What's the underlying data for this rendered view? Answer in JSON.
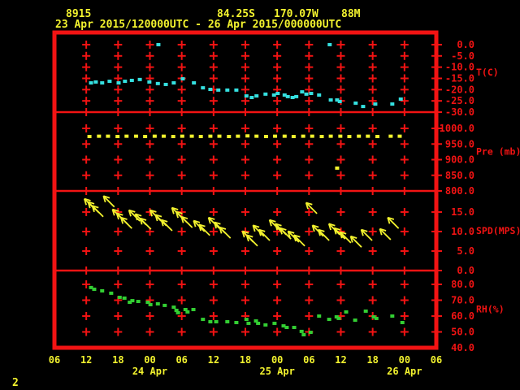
{
  "colors": {
    "background": "#000000",
    "red": "#f21313",
    "yellow": "#f2f22e",
    "cyan": "#35e0e0",
    "green": "#33cf33"
  },
  "header": {
    "station_id": "8915",
    "latitude": "84.25S",
    "longitude": "170.07W",
    "elevation": "88M",
    "time_range": "23 Apr 2015/120000UTC - 26 Apr 2015/000000UTC"
  },
  "footer": {
    "figure_number": "2"
  },
  "x_axis": {
    "hours_span": 72,
    "tick_hours": [
      0,
      6,
      12,
      18,
      24,
      30,
      36,
      42,
      48,
      54,
      60,
      66,
      72
    ],
    "tick_labels": [
      "06",
      "12",
      "18",
      "00",
      "06",
      "12",
      "18",
      "00",
      "06",
      "12",
      "18",
      "00",
      "06"
    ],
    "date_labels": [
      {
        "label": "24 Apr",
        "hour": 18
      },
      {
        "label": "25 Apr",
        "hour": 42
      },
      {
        "label": "26 Apr",
        "hour": 66
      }
    ]
  },
  "chart_data": [
    {
      "panel": "temperature",
      "type": "scatter",
      "unit_label": "T(C)",
      "color": "cyan",
      "yticks": [
        0,
        -5,
        -10,
        -15,
        -20,
        -25,
        -30
      ],
      "ytick_labels": [
        "0.0",
        "-5.0",
        "-10.0",
        "-15.0",
        "-20.0",
        "-25.0",
        "-30.0"
      ],
      "value_range": [
        -30,
        5.4
      ],
      "points": [
        [
          6.9,
          -17.0
        ],
        [
          7.8,
          -16.6
        ],
        [
          9.0,
          -17.0
        ],
        [
          10.4,
          -16.3
        ],
        [
          12.1,
          -17.0
        ],
        [
          13.3,
          -16.3
        ],
        [
          14.6,
          -15.9
        ],
        [
          16.1,
          -15.5
        ],
        [
          17.9,
          -16.6
        ],
        [
          19.5,
          -17.3
        ],
        [
          19.6,
          0.0
        ],
        [
          21.0,
          -17.7
        ],
        [
          22.5,
          -17.0
        ],
        [
          24.2,
          -15.2
        ],
        [
          26.3,
          -17.0
        ],
        [
          28.0,
          -19.2
        ],
        [
          29.4,
          -19.9
        ],
        [
          30.9,
          -20.2
        ],
        [
          32.6,
          -20.2
        ],
        [
          34.3,
          -20.2
        ],
        [
          36.2,
          -22.8
        ],
        [
          37.2,
          -23.5
        ],
        [
          38.1,
          -22.8
        ],
        [
          39.8,
          -22.0
        ],
        [
          41.4,
          -22.4
        ],
        [
          42.1,
          -21.7
        ],
        [
          43.4,
          -22.4
        ],
        [
          44.0,
          -23.1
        ],
        [
          44.9,
          -23.5
        ],
        [
          45.6,
          -23.1
        ],
        [
          46.7,
          -21.0
        ],
        [
          47.5,
          -22.0
        ],
        [
          48.4,
          -21.7
        ],
        [
          49.9,
          -22.4
        ],
        [
          51.9,
          0.0
        ],
        [
          52.1,
          -24.6
        ],
        [
          53.3,
          -24.6
        ],
        [
          53.8,
          -25.3
        ],
        [
          56.8,
          -26.0
        ],
        [
          58.2,
          -27.5
        ],
        [
          60.5,
          -26.4
        ],
        [
          63.7,
          -26.4
        ],
        [
          65.3,
          -24.2
        ]
      ]
    },
    {
      "panel": "pressure",
      "type": "scatter",
      "unit_label": "Pre (mb)",
      "color": "yellow",
      "yticks": [
        1000,
        950,
        900,
        850,
        800
      ],
      "ytick_labels": [
        "1000.0",
        "950.0",
        "900.0",
        "850.0",
        "800.0"
      ],
      "value_range": [
        800,
        1052
      ],
      "points": [
        [
          6.6,
          974
        ],
        [
          8.4,
          975
        ],
        [
          10.1,
          975
        ],
        [
          11.9,
          974
        ],
        [
          13.6,
          975
        ],
        [
          15.4,
          975
        ],
        [
          17.1,
          974
        ],
        [
          18.9,
          975
        ],
        [
          20.6,
          975
        ],
        [
          22.4,
          974
        ],
        [
          24.1,
          975
        ],
        [
          25.9,
          975
        ],
        [
          27.6,
          974
        ],
        [
          29.4,
          975
        ],
        [
          31.1,
          975
        ],
        [
          32.9,
          974
        ],
        [
          34.6,
          975
        ],
        [
          36.4,
          976
        ],
        [
          38.1,
          975
        ],
        [
          39.9,
          974
        ],
        [
          41.6,
          975
        ],
        [
          43.4,
          975
        ],
        [
          45.1,
          974
        ],
        [
          46.9,
          975
        ],
        [
          48.6,
          975
        ],
        [
          50.4,
          974
        ],
        [
          52.1,
          975
        ],
        [
          53.3,
          873
        ],
        [
          53.9,
          975
        ],
        [
          55.6,
          974
        ],
        [
          57.4,
          975
        ],
        [
          59.1,
          975
        ],
        [
          60.9,
          974
        ],
        [
          63.4,
          975
        ],
        [
          65.1,
          975
        ]
      ]
    },
    {
      "panel": "wind_speed",
      "type": "wind-vectors",
      "unit_label": "SPD(MPS)",
      "color": "yellow",
      "arrow_dir_deg": 135,
      "yticks": [
        15,
        10,
        5,
        0
      ],
      "ytick_labels": [
        "15.0",
        "10.0",
        "5.0",
        "0.0"
      ],
      "value_range": [
        0,
        20.4
      ],
      "points": [
        [
          7.7,
          15.6
        ],
        [
          8.4,
          14.8
        ],
        [
          9.2,
          13.8
        ],
        [
          11.3,
          16.3
        ],
        [
          13.0,
          12.9
        ],
        [
          13.8,
          11.9
        ],
        [
          14.6,
          10.8
        ],
        [
          16.1,
          12.7
        ],
        [
          17.3,
          11.7
        ],
        [
          18.2,
          10.6
        ],
        [
          20.1,
          12.7
        ],
        [
          21.1,
          11.5
        ],
        [
          22.2,
          10.2
        ],
        [
          24.2,
          13.3
        ],
        [
          25.0,
          12.3
        ],
        [
          26.0,
          11.0
        ],
        [
          28.3,
          10.0
        ],
        [
          29.3,
          9.0
        ],
        [
          31.1,
          10.8
        ],
        [
          32.2,
          9.6
        ],
        [
          33.2,
          8.3
        ],
        [
          37.5,
          7.3
        ],
        [
          38.3,
          6.3
        ],
        [
          39.5,
          8.8
        ],
        [
          40.6,
          7.7
        ],
        [
          42.6,
          10.2
        ],
        [
          43.7,
          9.2
        ],
        [
          44.6,
          8.1
        ],
        [
          46.1,
          7.3
        ],
        [
          47.2,
          6.3
        ],
        [
          49.5,
          14.6
        ],
        [
          50.7,
          8.8
        ],
        [
          51.8,
          7.7
        ],
        [
          53.8,
          9.2
        ],
        [
          54.8,
          8.1
        ],
        [
          55.9,
          7.1
        ],
        [
          57.9,
          6.0
        ],
        [
          59.9,
          7.7
        ],
        [
          63.4,
          7.9
        ],
        [
          64.9,
          10.8
        ]
      ]
    },
    {
      "panel": "relative_humidity",
      "type": "scatter",
      "unit_label": "RH(%)",
      "color": "green",
      "yticks": [
        80,
        70,
        60,
        50,
        40
      ],
      "ytick_labels": [
        "80.0",
        "70.0",
        "60.0",
        "50.0",
        "40.0"
      ],
      "value_range": [
        40,
        88.7
      ],
      "points": [
        [
          6.9,
          78.0
        ],
        [
          7.5,
          76.9
        ],
        [
          9.0,
          75.9
        ],
        [
          10.7,
          74.4
        ],
        [
          12.3,
          71.8
        ],
        [
          13.2,
          71.3
        ],
        [
          14.2,
          68.7
        ],
        [
          14.7,
          69.7
        ],
        [
          15.8,
          69.2
        ],
        [
          17.6,
          68.7
        ],
        [
          18.1,
          67.2
        ],
        [
          19.5,
          67.7
        ],
        [
          20.8,
          66.7
        ],
        [
          22.5,
          65.6
        ],
        [
          23.0,
          63.6
        ],
        [
          23.3,
          62.1
        ],
        [
          24.7,
          64.1
        ],
        [
          25.1,
          62.6
        ],
        [
          26.2,
          64.1
        ],
        [
          28.0,
          57.9
        ],
        [
          29.4,
          56.4
        ],
        [
          30.5,
          56.4
        ],
        [
          32.6,
          56.4
        ],
        [
          34.3,
          55.9
        ],
        [
          36.2,
          57.9
        ],
        [
          36.6,
          55.4
        ],
        [
          38.0,
          56.9
        ],
        [
          38.4,
          55.4
        ],
        [
          39.8,
          54.4
        ],
        [
          41.5,
          55.4
        ],
        [
          43.2,
          53.8
        ],
        [
          43.8,
          52.8
        ],
        [
          45.2,
          52.8
        ],
        [
          46.6,
          50.3
        ],
        [
          47.0,
          48.2
        ],
        [
          48.3,
          49.7
        ],
        [
          49.9,
          60.0
        ],
        [
          51.8,
          57.9
        ],
        [
          53.2,
          59.5
        ],
        [
          53.6,
          58.5
        ],
        [
          55.0,
          62.6
        ],
        [
          56.7,
          57.4
        ],
        [
          58.7,
          63.1
        ],
        [
          60.2,
          59.5
        ],
        [
          60.7,
          58.5
        ],
        [
          63.7,
          60.0
        ],
        [
          65.6,
          55.9
        ]
      ]
    }
  ]
}
